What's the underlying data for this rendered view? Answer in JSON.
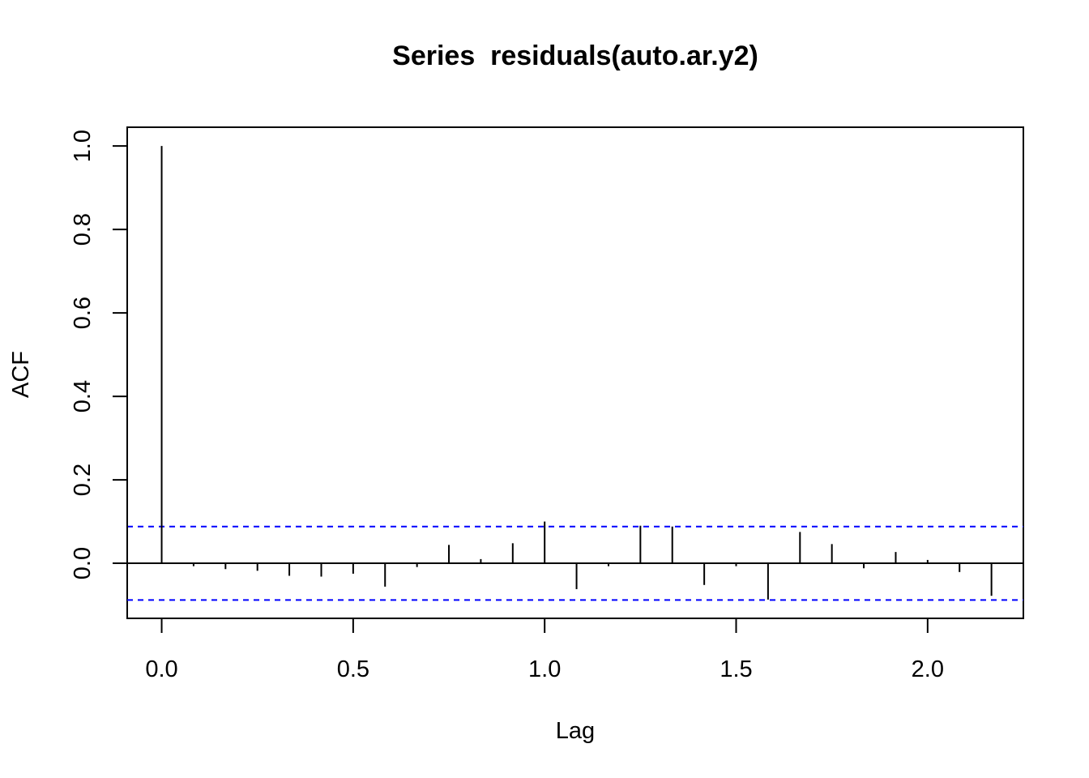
{
  "chart_data": {
    "type": "bar",
    "title": "Series  residuals(auto.ar.y2)",
    "xlabel": "Lag",
    "ylabel": "ACF",
    "xlim": [
      -0.09,
      2.25
    ],
    "ylim": [
      -0.132,
      1.045
    ],
    "x_ticks": [
      0.0,
      0.5,
      1.0,
      1.5,
      2.0
    ],
    "x_tick_labels": [
      "0.0",
      "0.5",
      "1.0",
      "1.5",
      "2.0"
    ],
    "y_ticks": [
      0.0,
      0.2,
      0.4,
      0.6,
      0.8,
      1.0
    ],
    "y_tick_labels": [
      "0.0",
      "0.2",
      "0.4",
      "0.6",
      "0.8",
      "1.0"
    ],
    "grid": false,
    "confidence_band": {
      "upper": 0.088,
      "lower": -0.088,
      "color": "#0000ff",
      "style": "dashed"
    },
    "series": [
      {
        "color": "#000000",
        "x": [
          0,
          0.0833,
          0.1667,
          0.25,
          0.3333,
          0.4167,
          0.5,
          0.5833,
          0.6667,
          0.75,
          0.8333,
          0.9167,
          1.0,
          1.0833,
          1.1667,
          1.25,
          1.3333,
          1.4167,
          1.5,
          1.5833,
          1.6667,
          1.75,
          1.8333,
          1.9167,
          2.0,
          2.0833,
          2.1667
        ],
        "values": [
          1.0,
          -0.007,
          -0.014,
          -0.018,
          -0.03,
          -0.032,
          -0.025,
          -0.056,
          -0.009,
          0.044,
          0.01,
          0.048,
          0.1,
          -0.062,
          -0.007,
          0.09,
          0.088,
          -0.052,
          -0.007,
          -0.087,
          0.075,
          0.046,
          -0.012,
          0.027,
          0.008,
          -0.021,
          -0.078
        ]
      }
    ]
  }
}
